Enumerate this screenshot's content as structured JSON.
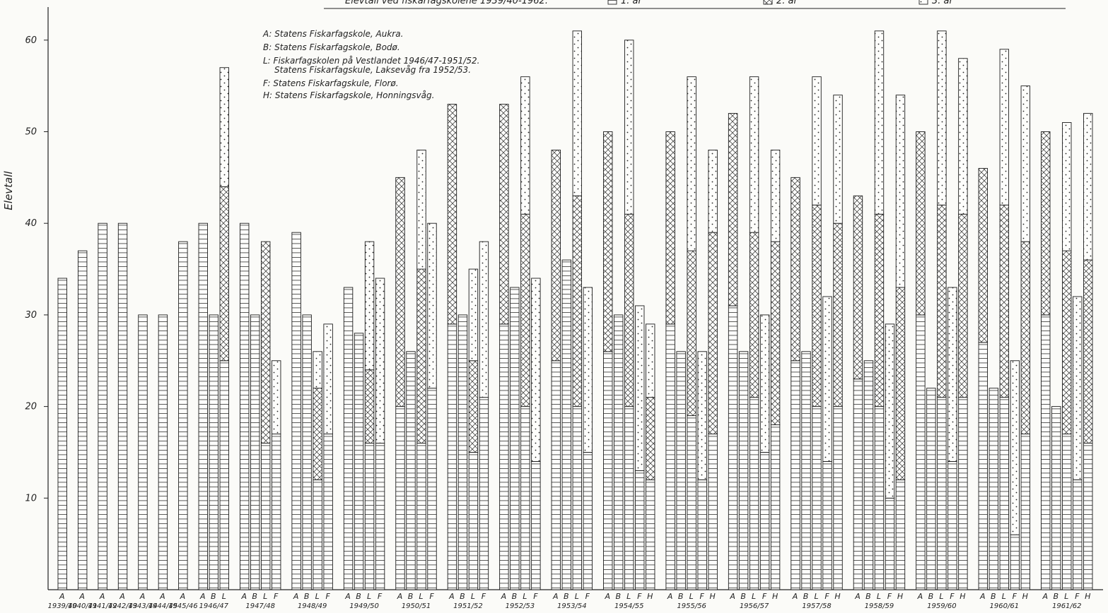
{
  "title": "Elevtall ved fiskarfagskolene 1939/40-1962.",
  "title_legend": [
    {
      "pattern": "hstripe",
      "text": "1. år"
    },
    {
      "pattern": "cross",
      "text": "2. år"
    },
    {
      "pattern": "dots",
      "text": "3. år"
    }
  ],
  "legend_lines": [
    "A: Statens Fiskarfagskole, Aukra.",
    "B: Statens Fiskarfagskole, Bodø.",
    "L: Fiskarfagskolen på Vestlandet 1946/47-1951/52.",
    "Statens Fiskarfagskule, Laksevåg fra 1952/53.",
    "F: Statens Fiskarfagskule, Florø.",
    "H: Statens Fiskarfagskole, Honningsvåg."
  ],
  "chart_data": {
    "type": "bar",
    "subtype": "stacked, grouped by school year",
    "ylabel": "Elevtall",
    "xlabel": "",
    "ylim": [
      0,
      64
    ],
    "yticks": [
      10,
      20,
      30,
      40,
      50,
      60
    ],
    "grid": false,
    "stack_layers": [
      "horizontal hatch",
      "cross hatch",
      "dotted"
    ],
    "years": [
      {
        "year": "1939/40",
        "bars": [
          {
            "school": "A",
            "values": [
              34,
              0,
              0
            ]
          }
        ]
      },
      {
        "year": "1940/41",
        "bars": [
          {
            "school": "A",
            "values": [
              37,
              0,
              0
            ]
          }
        ]
      },
      {
        "year": "1941/42",
        "bars": [
          {
            "school": "A",
            "values": [
              40,
              0,
              0
            ]
          }
        ]
      },
      {
        "year": "1942/43",
        "bars": [
          {
            "school": "A",
            "values": [
              40,
              0,
              0
            ]
          }
        ]
      },
      {
        "year": "1943/44",
        "bars": [
          {
            "school": "A",
            "values": [
              30,
              0,
              0
            ]
          }
        ]
      },
      {
        "year": "1944/45",
        "bars": [
          {
            "school": "A",
            "values": [
              30,
              0,
              0
            ]
          }
        ]
      },
      {
        "year": "1945/46",
        "bars": [
          {
            "school": "A",
            "values": [
              38,
              0,
              0
            ]
          }
        ]
      },
      {
        "year": "1946/47",
        "bars": [
          {
            "school": "A",
            "values": [
              40,
              0,
              0
            ]
          },
          {
            "school": "B",
            "values": [
              30,
              0,
              0
            ]
          },
          {
            "school": "L",
            "values": [
              25,
              19,
              13
            ]
          }
        ]
      },
      {
        "year": "1947/48",
        "bars": [
          {
            "school": "A",
            "values": [
              40,
              0,
              0
            ]
          },
          {
            "school": "B",
            "values": [
              30,
              0,
              0
            ]
          },
          {
            "school": "L",
            "values": [
              16,
              22,
              0
            ]
          },
          {
            "school": "F",
            "values": [
              17,
              0,
              8
            ]
          }
        ]
      },
      {
        "year": "1948/49",
        "bars": [
          {
            "school": "A",
            "values": [
              39,
              0,
              0
            ]
          },
          {
            "school": "B",
            "values": [
              30,
              0,
              0
            ]
          },
          {
            "school": "L",
            "values": [
              12,
              10,
              4
            ]
          },
          {
            "school": "F",
            "values": [
              17,
              0,
              12
            ]
          }
        ]
      },
      {
        "year": "1949/50",
        "bars": [
          {
            "school": "A",
            "values": [
              33,
              0,
              0
            ]
          },
          {
            "school": "B",
            "values": [
              28,
              0,
              0
            ]
          },
          {
            "school": "L",
            "values": [
              16,
              8,
              14
            ]
          },
          {
            "school": "F",
            "values": [
              16,
              0,
              18
            ]
          }
        ]
      },
      {
        "year": "1950/51",
        "bars": [
          {
            "school": "A",
            "values": [
              20,
              25,
              0
            ]
          },
          {
            "school": "B",
            "values": [
              26,
              0,
              0
            ]
          },
          {
            "school": "L",
            "values": [
              16,
              19,
              13
            ]
          },
          {
            "school": "F",
            "values": [
              22,
              0,
              18
            ]
          }
        ]
      },
      {
        "year": "1951/52",
        "bars": [
          {
            "school": "A",
            "values": [
              29,
              24,
              0
            ]
          },
          {
            "school": "B",
            "values": [
              30,
              0,
              0
            ]
          },
          {
            "school": "L",
            "values": [
              15,
              10,
              10
            ]
          },
          {
            "school": "F",
            "values": [
              21,
              0,
              17
            ]
          }
        ]
      },
      {
        "year": "1952/53",
        "bars": [
          {
            "school": "A",
            "values": [
              29,
              24,
              0
            ]
          },
          {
            "school": "B",
            "values": [
              33,
              0,
              0
            ]
          },
          {
            "school": "L",
            "values": [
              20,
              21,
              15
            ]
          },
          {
            "school": "F",
            "values": [
              14,
              0,
              20
            ]
          }
        ]
      },
      {
        "year": "1953/54",
        "bars": [
          {
            "school": "A",
            "values": [
              25,
              23,
              0
            ]
          },
          {
            "school": "B",
            "values": [
              36,
              0,
              0
            ]
          },
          {
            "school": "L",
            "values": [
              20,
              23,
              18
            ]
          },
          {
            "school": "F",
            "values": [
              15,
              0,
              18
            ]
          }
        ]
      },
      {
        "year": "1954/55",
        "bars": [
          {
            "school": "A",
            "values": [
              26,
              24,
              0
            ]
          },
          {
            "school": "B",
            "values": [
              30,
              0,
              0
            ]
          },
          {
            "school": "L",
            "values": [
              20,
              21,
              19
            ]
          },
          {
            "school": "F",
            "values": [
              13,
              0,
              18
            ]
          },
          {
            "school": "H",
            "values": [
              12,
              9,
              8
            ]
          }
        ]
      },
      {
        "year": "1955/56",
        "bars": [
          {
            "school": "A",
            "values": [
              29,
              21,
              0
            ]
          },
          {
            "school": "B",
            "values": [
              26,
              0,
              0
            ]
          },
          {
            "school": "L",
            "values": [
              19,
              18,
              19
            ]
          },
          {
            "school": "F",
            "values": [
              12,
              0,
              14
            ]
          },
          {
            "school": "H",
            "values": [
              17,
              22,
              9
            ]
          }
        ]
      },
      {
        "year": "1956/57",
        "bars": [
          {
            "school": "A",
            "values": [
              31,
              21,
              0
            ]
          },
          {
            "school": "B",
            "values": [
              26,
              0,
              0
            ]
          },
          {
            "school": "L",
            "values": [
              21,
              18,
              17
            ]
          },
          {
            "school": "F",
            "values": [
              15,
              0,
              15
            ]
          },
          {
            "school": "H",
            "values": [
              18,
              20,
              10
            ]
          }
        ]
      },
      {
        "year": "1957/58",
        "bars": [
          {
            "school": "A",
            "values": [
              25,
              20,
              0
            ]
          },
          {
            "school": "B",
            "values": [
              26,
              0,
              0
            ]
          },
          {
            "school": "L",
            "values": [
              20,
              22,
              14
            ]
          },
          {
            "school": "F",
            "values": [
              14,
              0,
              18
            ]
          },
          {
            "school": "H",
            "values": [
              20,
              20,
              14
            ]
          }
        ]
      },
      {
        "year": "1958/59",
        "bars": [
          {
            "school": "A",
            "values": [
              23,
              20,
              0
            ]
          },
          {
            "school": "B",
            "values": [
              25,
              0,
              0
            ]
          },
          {
            "school": "L",
            "values": [
              20,
              21,
              20
            ]
          },
          {
            "school": "F",
            "values": [
              10,
              0,
              19
            ]
          },
          {
            "school": "H",
            "values": [
              12,
              21,
              21
            ]
          }
        ]
      },
      {
        "year": "1959/60",
        "bars": [
          {
            "school": "A",
            "values": [
              30,
              20,
              0
            ]
          },
          {
            "school": "B",
            "values": [
              22,
              0,
              0
            ]
          },
          {
            "school": "L",
            "values": [
              21,
              21,
              19
            ]
          },
          {
            "school": "F",
            "values": [
              14,
              0,
              19
            ]
          },
          {
            "school": "H",
            "values": [
              21,
              20,
              17
            ]
          }
        ]
      },
      {
        "year": "1960/61",
        "bars": [
          {
            "school": "A",
            "values": [
              27,
              19,
              0
            ]
          },
          {
            "school": "B",
            "values": [
              22,
              0,
              0
            ]
          },
          {
            "school": "L",
            "values": [
              21,
              21,
              17
            ]
          },
          {
            "school": "F",
            "values": [
              6,
              0,
              19
            ]
          },
          {
            "school": "H",
            "values": [
              17,
              21,
              17
            ]
          }
        ]
      },
      {
        "year": "1961/62",
        "bars": [
          {
            "school": "A",
            "values": [
              30,
              20,
              0
            ]
          },
          {
            "school": "B",
            "values": [
              20,
              0,
              0
            ]
          },
          {
            "school": "L",
            "values": [
              17,
              20,
              14
            ]
          },
          {
            "school": "F",
            "values": [
              12,
              0,
              20
            ]
          },
          {
            "school": "H",
            "values": [
              16,
              20,
              16
            ]
          }
        ]
      }
    ]
  }
}
